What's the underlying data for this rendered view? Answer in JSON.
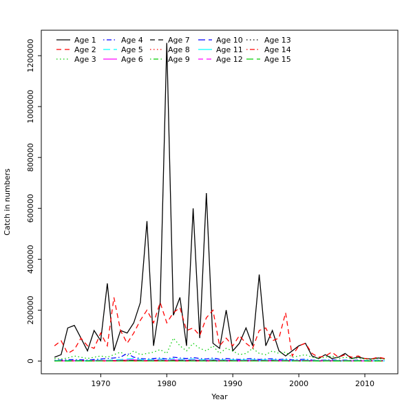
{
  "figure": {
    "background": "#ffffff"
  },
  "chart_data": {
    "type": "line",
    "title": "",
    "xlabel": "Year",
    "ylabel": "Catch in numbers",
    "xlim": [
      1963,
      2013
    ],
    "ylim": [
      0,
      1250000
    ],
    "x_ticks": [
      1970,
      1980,
      1990,
      2000,
      2010
    ],
    "y_ticks": [
      0,
      200000,
      400000,
      600000,
      800000,
      1000000,
      1200000
    ],
    "grid": false,
    "legend_position": "top-left",
    "legend_columns": 5,
    "years": [
      1963,
      1964,
      1965,
      1966,
      1967,
      1968,
      1969,
      1970,
      1971,
      1972,
      1973,
      1974,
      1975,
      1976,
      1977,
      1978,
      1979,
      1980,
      1981,
      1982,
      1983,
      1984,
      1985,
      1986,
      1987,
      1988,
      1989,
      1990,
      1991,
      1992,
      1993,
      1994,
      1995,
      1996,
      1997,
      1998,
      1999,
      2000,
      2001,
      2002,
      2003,
      2004,
      2005,
      2006,
      2007,
      2008,
      2009,
      2010,
      2011,
      2012,
      2013
    ],
    "series": [
      {
        "name": "Age 1",
        "color": "#000000",
        "linetype": "solid",
        "values": [
          15000,
          25000,
          130000,
          140000,
          90000,
          40000,
          120000,
          80000,
          305000,
          40000,
          120000,
          110000,
          150000,
          230000,
          550000,
          60000,
          230000,
          1250000,
          180000,
          250000,
          60000,
          600000,
          90000,
          660000,
          70000,
          50000,
          200000,
          40000,
          70000,
          130000,
          60000,
          340000,
          60000,
          120000,
          40000,
          20000,
          40000,
          60000,
          70000,
          20000,
          10000,
          25000,
          10000,
          15000,
          30000,
          10000,
          15000,
          10000,
          8000,
          12000,
          10000
        ]
      },
      {
        "name": "Age 2",
        "color": "#FF0000",
        "linetype": "dashed",
        "values": [
          60000,
          80000,
          30000,
          45000,
          90000,
          60000,
          50000,
          110000,
          60000,
          250000,
          120000,
          70000,
          110000,
          160000,
          200000,
          150000,
          230000,
          150000,
          190000,
          210000,
          120000,
          130000,
          100000,
          170000,
          200000,
          60000,
          90000,
          60000,
          100000,
          70000,
          50000,
          120000,
          130000,
          80000,
          90000,
          190000,
          20000,
          60000,
          70000,
          30000,
          15000,
          20000,
          35000,
          15000,
          25000,
          15000,
          20000,
          10000,
          8000,
          15000,
          10000
        ]
      },
      {
        "name": "Age 3",
        "color": "#00CD00",
        "linetype": "dotted",
        "values": [
          10000,
          8000,
          12000,
          20000,
          15000,
          10000,
          15000,
          20000,
          15000,
          25000,
          35000,
          20000,
          40000,
          25000,
          30000,
          35000,
          45000,
          30000,
          90000,
          60000,
          40000,
          70000,
          50000,
          40000,
          60000,
          30000,
          50000,
          40000,
          25000,
          30000,
          50000,
          30000,
          25000,
          40000,
          30000,
          35000,
          15000,
          20000,
          25000,
          15000,
          10000,
          15000,
          20000,
          10000,
          15000,
          10000,
          12000,
          8000,
          6000,
          10000,
          7000
        ]
      },
      {
        "name": "Age 4",
        "color": "#0000FF",
        "linetype": "dotdash",
        "values": [
          3000,
          4000,
          5000,
          6000,
          5000,
          4000,
          6000,
          8000,
          10000,
          12000,
          15000,
          30000,
          15000,
          10000,
          8000,
          10000,
          12000,
          8000,
          15000,
          12000,
          10000,
          14000,
          10000,
          8000,
          12000,
          7000,
          10000,
          8000,
          6000,
          8000,
          10000,
          6000,
          8000,
          9000,
          6000,
          8000,
          5000,
          6000,
          7000,
          4000,
          3000,
          4000,
          5000,
          3000,
          4000,
          3000,
          3500,
          2500,
          2000,
          3000,
          2500
        ]
      },
      {
        "name": "Age 5",
        "color": "#00FFFF",
        "linetype": "longdash",
        "values": [
          2000,
          2500,
          2000,
          3000,
          2500,
          2000,
          3000,
          4000,
          3000,
          5000,
          6000,
          8000,
          10000,
          6000,
          5000,
          6000,
          8000,
          5000,
          9000,
          7000,
          6000,
          8000,
          6000,
          5000,
          7000,
          4000,
          6000,
          5000,
          4000,
          5000,
          6000,
          4000,
          5000,
          6000,
          4000,
          5000,
          3000,
          4000,
          4000,
          3000,
          2000,
          3000,
          3000,
          2000,
          3000,
          2000,
          2500,
          2000,
          1500,
          2000,
          1500
        ]
      },
      {
        "name": "Age 6",
        "color": "#FF00FF",
        "linetype": "solid",
        "values": [
          1000,
          1200,
          1000,
          1500,
          1200,
          1000,
          1500,
          2000,
          1500,
          2500,
          3000,
          4000,
          5000,
          3000,
          2500,
          3000,
          4000,
          2500,
          4500,
          3500,
          3000,
          4000,
          3000,
          2500,
          3500,
          2000,
          3000,
          2500,
          2000,
          2500,
          3000,
          2000,
          2500,
          3000,
          2000,
          2500,
          1500,
          2000,
          2000,
          1500,
          1000,
          1500,
          1500,
          1000,
          1500,
          1000,
          1200,
          1000,
          800,
          1000,
          800
        ]
      },
      {
        "name": "Age 7",
        "color": "#000000",
        "linetype": "dashed",
        "values": [
          500,
          600,
          500,
          800,
          600,
          500,
          800,
          1000,
          800,
          1200,
          1500,
          2000,
          2500,
          1500,
          1200,
          1500,
          2000,
          1200,
          2200,
          1800,
          1500,
          2000,
          1500,
          1200,
          1800,
          1000,
          1500,
          1200,
          1000,
          1200,
          1500,
          1000,
          1200,
          1500,
          1000,
          1200,
          800,
          1000,
          1000,
          800,
          500,
          800,
          800,
          500,
          800,
          500,
          600,
          500,
          400,
          500,
          400
        ]
      },
      {
        "name": "Age 8",
        "color": "#FF0000",
        "linetype": "dotted",
        "values": [
          400,
          500,
          400,
          600,
          500,
          400,
          600,
          800,
          600,
          1000,
          1200,
          1500,
          2000,
          1200,
          1000,
          1200,
          1500,
          1000,
          1800,
          1400,
          1200,
          1500,
          1200,
          1000,
          1400,
          800,
          1200,
          1000,
          800,
          1000,
          1200,
          800,
          1000,
          1200,
          800,
          1000,
          600,
          800,
          800,
          600,
          400,
          600,
          600,
          400,
          600,
          400,
          500,
          400,
          300,
          400,
          300
        ]
      },
      {
        "name": "Age 9",
        "color": "#00CD00",
        "linetype": "dotdash",
        "values": [
          300,
          400,
          300,
          500,
          400,
          300,
          500,
          600,
          500,
          800,
          1000,
          1200,
          1500,
          1000,
          800,
          1000,
          1200,
          800,
          1400,
          1100,
          1000,
          1200,
          1000,
          800,
          1100,
          600,
          1000,
          800,
          600,
          800,
          1000,
          600,
          800,
          1000,
          600,
          800,
          500,
          600,
          600,
          500,
          300,
          500,
          500,
          300,
          500,
          300,
          400,
          300,
          250,
          300,
          250
        ]
      },
      {
        "name": "Age 10",
        "color": "#0000FF",
        "linetype": "longdash",
        "values": [
          250,
          300,
          250,
          400,
          300,
          250,
          400,
          500,
          400,
          600,
          800,
          1000,
          1200,
          800,
          600,
          800,
          1000,
          600,
          1100,
          900,
          800,
          1000,
          800,
          600,
          900,
          500,
          800,
          600,
          500,
          600,
          800,
          500,
          600,
          800,
          500,
          600,
          400,
          500,
          500,
          400,
          250,
          400,
          400,
          250,
          400,
          250,
          300,
          250,
          200,
          250,
          200
        ]
      },
      {
        "name": "Age 11",
        "color": "#00FFFF",
        "linetype": "solid",
        "values": [
          200,
          250,
          200,
          300,
          250,
          200,
          300,
          400,
          300,
          500,
          600,
          800,
          1000,
          600,
          500,
          600,
          800,
          500,
          900,
          700,
          600,
          800,
          600,
          500,
          700,
          400,
          600,
          500,
          400,
          500,
          600,
          400,
          500,
          600,
          400,
          500,
          300,
          400,
          400,
          300,
          200,
          300,
          300,
          200,
          300,
          200,
          250,
          200,
          150,
          200,
          150
        ]
      },
      {
        "name": "Age 12",
        "color": "#FF00FF",
        "linetype": "dashed",
        "values": [
          150,
          200,
          150,
          250,
          200,
          150,
          250,
          300,
          250,
          400,
          500,
          600,
          800,
          500,
          400,
          500,
          600,
          400,
          700,
          550,
          500,
          600,
          500,
          400,
          550,
          300,
          500,
          400,
          300,
          400,
          500,
          300,
          400,
          500,
          300,
          400,
          250,
          300,
          300,
          250,
          150,
          250,
          250,
          150,
          250,
          150,
          200,
          150,
          120,
          150,
          120
        ]
      },
      {
        "name": "Age 13",
        "color": "#000000",
        "linetype": "dotted",
        "values": [
          120,
          150,
          120,
          200,
          150,
          120,
          200,
          250,
          200,
          300,
          400,
          500,
          600,
          400,
          300,
          400,
          500,
          300,
          550,
          450,
          400,
          500,
          400,
          300,
          450,
          250,
          400,
          300,
          250,
          300,
          400,
          250,
          300,
          400,
          250,
          300,
          200,
          250,
          250,
          200,
          120,
          200,
          200,
          120,
          200,
          120,
          150,
          120,
          100,
          120,
          100
        ]
      },
      {
        "name": "Age 14",
        "color": "#FF0000",
        "linetype": "dotdash",
        "values": [
          100,
          120,
          100,
          150,
          120,
          100,
          150,
          200,
          150,
          250,
          300,
          400,
          500,
          300,
          250,
          300,
          400,
          250,
          450,
          350,
          300,
          400,
          300,
          250,
          350,
          200,
          300,
          250,
          200,
          250,
          300,
          200,
          250,
          300,
          200,
          250,
          150,
          200,
          200,
          150,
          100,
          150,
          150,
          100,
          150,
          100,
          120,
          100,
          80,
          100,
          80
        ]
      },
      {
        "name": "Age 15",
        "color": "#00CD00",
        "linetype": "longdash",
        "values": [
          80,
          100,
          80,
          120,
          100,
          80,
          120,
          150,
          120,
          200,
          250,
          300,
          400,
          250,
          200,
          250,
          300,
          200,
          350,
          280,
          250,
          300,
          250,
          200,
          280,
          150,
          250,
          200,
          150,
          200,
          250,
          150,
          200,
          250,
          150,
          200,
          120,
          150,
          150,
          120,
          80,
          120,
          120,
          80,
          120,
          80,
          100,
          80,
          60,
          80,
          60
        ]
      }
    ]
  }
}
